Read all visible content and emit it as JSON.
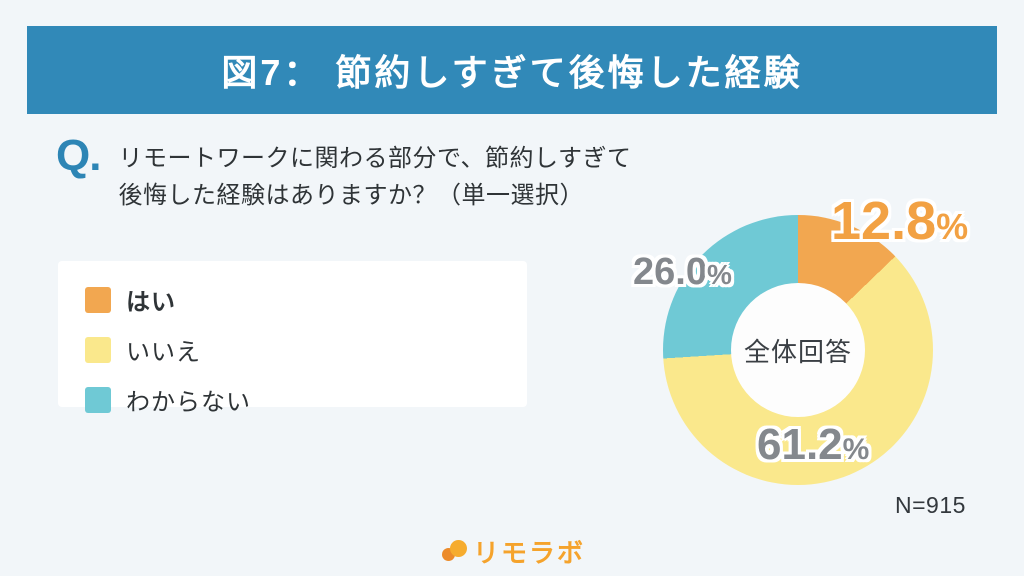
{
  "header": {
    "title": "図7： 節約しすぎて後悔した経験"
  },
  "question": {
    "prefix": "Q.",
    "line1": "リモートワークに関わる部分で、節約しすぎて",
    "line2": "後悔した経験はありますか？（単一選択）"
  },
  "legend": {
    "items": [
      {
        "label": "はい",
        "emphasis": true
      },
      {
        "label": "いいえ",
        "emphasis": false
      },
      {
        "label": "わからない",
        "emphasis": false
      }
    ]
  },
  "chart_data": {
    "type": "pie",
    "subtype": "donut",
    "title": "図7： 節約しすぎて後悔した経験",
    "categories": [
      "はい",
      "いいえ",
      "わからない"
    ],
    "values": [
      12.8,
      61.2,
      26.0
    ],
    "colors": [
      "#F2A750",
      "#FAE88C",
      "#6FC9D5"
    ],
    "slice_labels": [
      {
        "value": "12.8",
        "suffix": "%"
      },
      {
        "value": "61.2",
        "suffix": "%"
      },
      {
        "value": "26.0",
        "suffix": "%"
      }
    ],
    "center_label": "全体回答",
    "sample_size": "N=915",
    "start_angle_deg": 0,
    "direction": "clockwise",
    "legend_position": "left"
  },
  "footer": {
    "logo_text": "リモラボ"
  },
  "palette": {
    "header_bg": "#3189B8",
    "accent_blue": "#2D85B5",
    "background": "#F2F6F9",
    "card_bg": "#FFFFFF",
    "text_dark": "#2F3437",
    "label_gray": "#84888D",
    "logo_orange": "#F5A32C"
  }
}
